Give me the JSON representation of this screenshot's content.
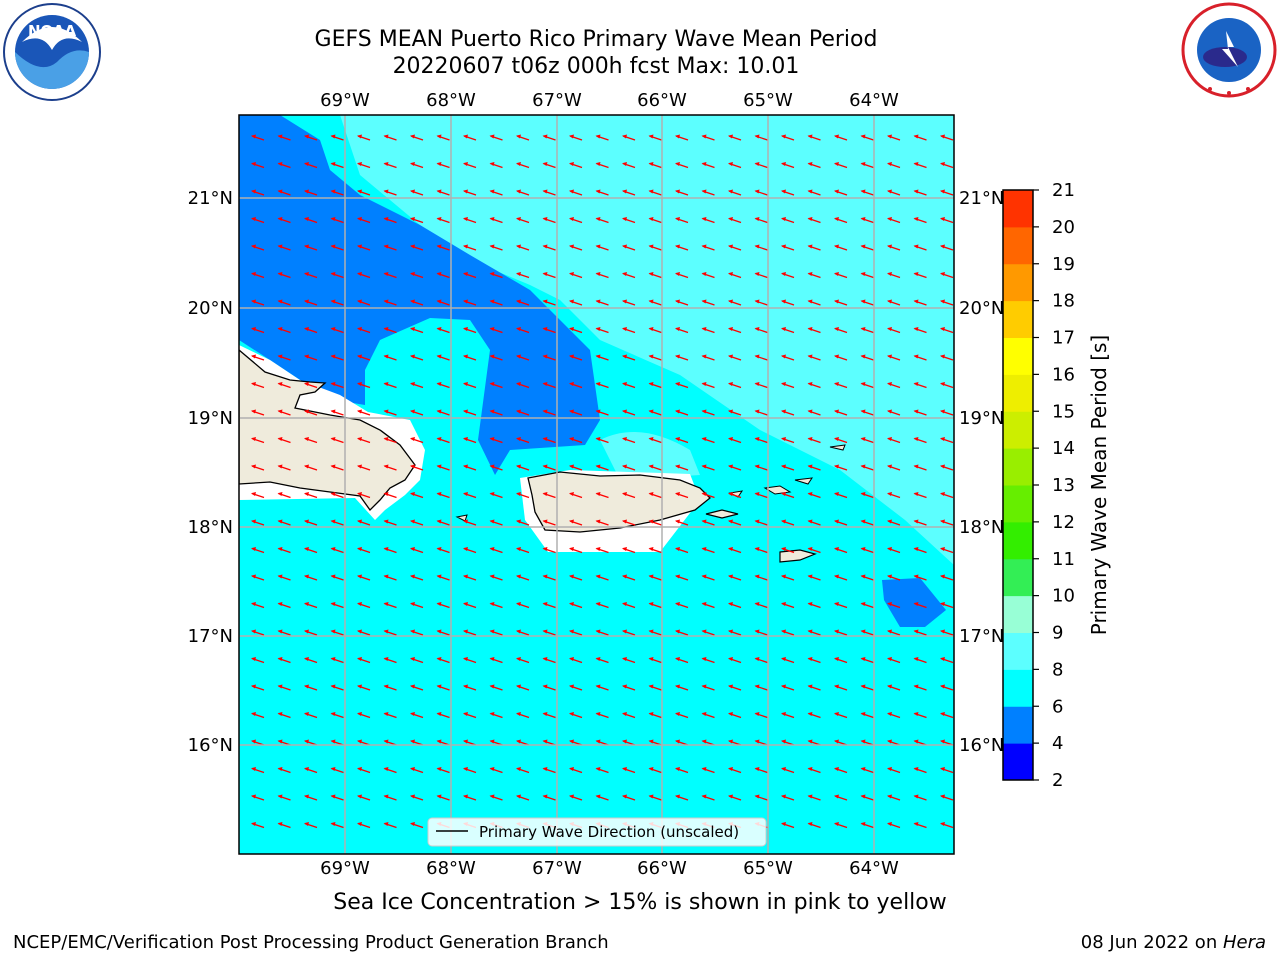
{
  "header": {
    "title_line1": "GEFS MEAN Puerto Rico Primary Wave Mean Period",
    "title_line2": "20220607 t06z 000h fcst   Max: 10.01"
  },
  "logos": {
    "left": {
      "name": "noaa-logo",
      "text": "NOAA"
    },
    "right": {
      "name": "national-weather-service-logo"
    }
  },
  "map": {
    "lon_ticks": [
      "69°W",
      "68°W",
      "67°W",
      "66°W",
      "65°W",
      "64°W"
    ],
    "lat_ticks": [
      "21°N",
      "20°N",
      "19°N",
      "18°N",
      "17°N",
      "16°N"
    ],
    "legend_label": "Primary Wave Direction (unscaled)",
    "arrow_color": "#ff0000",
    "land_color": "#efebdc",
    "colors": {
      "shallow": "#0080ff",
      "mid": "#00ffff",
      "light": "#5cffff"
    }
  },
  "colorbar": {
    "label": "Primary Wave Mean Period [s]",
    "ticks": [
      "2",
      "4",
      "6",
      "8",
      "9",
      "10",
      "11",
      "12",
      "13",
      "14",
      "15",
      "16",
      "17",
      "18",
      "19",
      "20",
      "21"
    ],
    "colors": [
      "#0000ff",
      "#0080ff",
      "#00ffff",
      "#5cffff",
      "#98ffd6",
      "#33ee55",
      "#33ee00",
      "#66ee00",
      "#99ee00",
      "#ccee00",
      "#eeee00",
      "#ffff00",
      "#ffcc00",
      "#ff9900",
      "#ff6600",
      "#ff3300",
      "#ff0000"
    ]
  },
  "footer": {
    "note": "Sea Ice Concentration > 15% is shown in pink to yellow",
    "left": "NCEP/EMC/Verification Post Processing Product Generation Branch",
    "right_prefix": "08 Jun 2022 on ",
    "right_host": "Hera"
  }
}
